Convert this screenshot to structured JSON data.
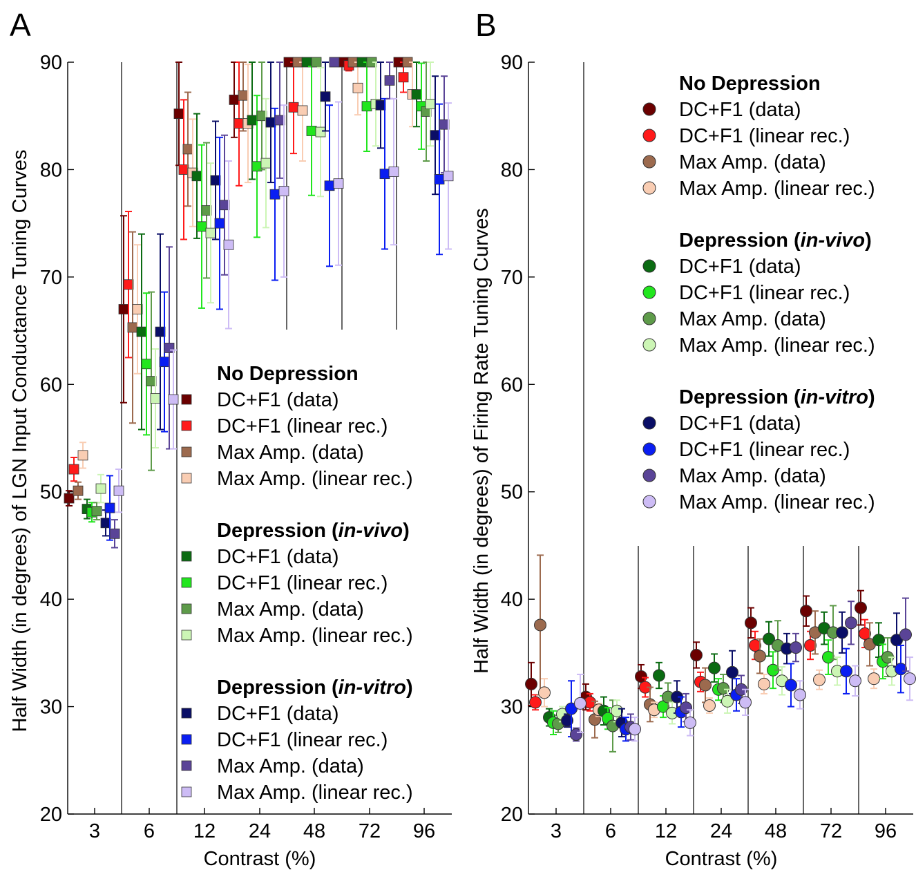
{
  "colors": {
    "no_dep_dc_data": "#6b0000",
    "no_dep_dc_lin": "#ff1a1a",
    "no_dep_max_data": "#9c6a4e",
    "no_dep_max_lin": "#f9cdb3",
    "vivo_dc_data": "#0b6b12",
    "vivo_dc_lin": "#22e61e",
    "vivo_max_data": "#5e9b4a",
    "vivo_max_lin": "#ccf5b5",
    "vitro_dc_data": "#0a0e66",
    "vitro_dc_lin": "#0a1ef2",
    "vitro_max_data": "#5a4497",
    "vitro_max_lin": "#cdbcf5"
  },
  "legend": {
    "groups": [
      {
        "title": "No Depression",
        "entries": [
          "DC+F1 (data)",
          "DC+F1 (linear rec.)",
          "Max Amp. (data)",
          "Max Amp. (linear rec.)"
        ]
      },
      {
        "title_pre": "Depression (",
        "title_ital": "in-vivo",
        "title_post": ")",
        "entries": [
          "DC+F1 (data)",
          "DC+F1 (linear rec.)",
          "Max Amp. (data)",
          "Max Amp. (linear rec.)"
        ]
      },
      {
        "title_pre": "Depression (",
        "title_ital": "in-vitro",
        "title_post": ")",
        "entries": [
          "DC+F1 (data)",
          "DC+F1 (linear rec.)",
          "Max Amp. (data)",
          "Max Amp. (linear rec.)"
        ]
      }
    ]
  },
  "chart_data": [
    {
      "panel": "A",
      "type": "scatter",
      "marker": "square",
      "xlabel": "Contrast (%)",
      "ylabel": "Half Width (in degrees) of LGN Input Conductance Tuning Curves",
      "ylim": [
        20,
        90
      ],
      "yticks": [
        20,
        30,
        40,
        50,
        60,
        70,
        80,
        90
      ],
      "categories": [
        "3",
        "6",
        "12",
        "24",
        "48",
        "72",
        "96"
      ],
      "series": [
        {
          "name": "DC+F1 (data)",
          "group": "No Depression",
          "values": [
            49.4,
            67.0,
            85.2,
            86.5,
            90.0,
            90.0,
            90.0
          ],
          "err": [
            0.7,
            8.7,
            4.8,
            3.5,
            0,
            0,
            0
          ]
        },
        {
          "name": "DC+F1 (linear rec.)",
          "group": "No Depression",
          "values": [
            52.1,
            69.3,
            80.0,
            84.3,
            85.8,
            89.7,
            88.6
          ],
          "err": [
            1.1,
            6.8,
            6.5,
            5.8,
            4.3,
            0.5,
            1.4
          ]
        },
        {
          "name": "Max Amp. (data)",
          "group": "No Depression",
          "values": [
            50.1,
            65.3,
            81.9,
            86.9,
            90.0,
            90.0,
            90.0
          ],
          "err": [
            0.8,
            8.9,
            5.3,
            3.3,
            0,
            0,
            0
          ]
        },
        {
          "name": "Max Amp. (linear rec.)",
          "group": "No Depression",
          "values": [
            53.4,
            67.0,
            79.7,
            84.3,
            85.5,
            87.6,
            87.0
          ],
          "err": [
            1.2,
            6.0,
            5.0,
            5.5,
            4.7,
            2.5,
            3.0
          ]
        },
        {
          "name": "DC+F1 (data)",
          "group": "Depression (in-vivo)",
          "values": [
            48.4,
            64.9,
            79.4,
            84.6,
            90.0,
            90.0,
            87.0
          ],
          "err": [
            0.9,
            9.1,
            5.8,
            5.5,
            0,
            0,
            3.0
          ]
        },
        {
          "name": "DC+F1 (linear rec.)",
          "group": "Depression (in-vivo)",
          "values": [
            48.1,
            61.9,
            74.7,
            80.3,
            83.6,
            85.9,
            85.9
          ],
          "err": [
            0.9,
            6.6,
            7.6,
            6.6,
            6.0,
            4.2,
            4.0
          ]
        },
        {
          "name": "Max Amp. (data)",
          "group": "Depression (in-vivo)",
          "values": [
            48.2,
            60.3,
            76.2,
            85.0,
            90.0,
            90.0,
            85.4
          ],
          "err": [
            0.8,
            8.3,
            6.3,
            5.0,
            0,
            0,
            4.6
          ]
        },
        {
          "name": "Max Amp. (linear rec.)",
          "group": "Depression (in-vivo)",
          "values": [
            50.3,
            58.7,
            74.1,
            80.6,
            83.5,
            86.1,
            86.1
          ],
          "err": [
            1.3,
            4.6,
            6.5,
            6.0,
            6.0,
            3.9,
            3.9
          ]
        },
        {
          "name": "DC+F1 (data)",
          "group": "Depression (in-vitro)",
          "values": [
            47.1,
            64.9,
            79.0,
            84.4,
            86.8,
            86.0,
            83.2
          ],
          "err": [
            1.2,
            9.1,
            5.5,
            5.6,
            3.2,
            4.0,
            5.5
          ]
        },
        {
          "name": "DC+F1 (linear rec.)",
          "group": "Depression (in-vitro)",
          "values": [
            48.5,
            62.1,
            75.0,
            77.7,
            78.5,
            79.6,
            79.1
          ],
          "err": [
            3.0,
            6.5,
            8.0,
            8.0,
            7.5,
            7.0,
            7.0
          ]
        },
        {
          "name": "Max Amp. (data)",
          "group": "Depression (in-vitro)",
          "values": [
            46.1,
            63.4,
            76.7,
            84.6,
            90.0,
            88.3,
            84.2
          ],
          "err": [
            1.3,
            9.4,
            6.5,
            5.4,
            0,
            1.7,
            4.5
          ]
        },
        {
          "name": "Max Amp. (linear rec.)",
          "group": "Depression (in-vitro)",
          "values": [
            50.1,
            58.6,
            73.0,
            78.0,
            78.7,
            79.8,
            79.4
          ],
          "err": [
            2.0,
            4.6,
            7.8,
            8.0,
            7.6,
            6.8,
            6.8
          ]
        }
      ]
    },
    {
      "panel": "B",
      "type": "scatter",
      "marker": "circle",
      "xlabel": "Contrast (%)",
      "ylabel": "Half Width (in degrees) of Firing Rate Tuning Curves",
      "ylim": [
        20,
        90
      ],
      "yticks": [
        20,
        30,
        40,
        50,
        60,
        70,
        80,
        90
      ],
      "categories": [
        "3",
        "6",
        "12",
        "24",
        "48",
        "72",
        "96"
      ],
      "series": [
        {
          "name": "DC+F1 (data)",
          "group": "No Depression",
          "values": [
            32.1,
            30.9,
            32.8,
            34.8,
            37.8,
            38.9,
            39.2
          ],
          "err": [
            2.0,
            1.2,
            1.1,
            1.2,
            1.4,
            1.4,
            1.6
          ]
        },
        {
          "name": "DC+F1 (linear rec.)",
          "group": "No Depression",
          "values": [
            30.4,
            30.4,
            31.8,
            32.3,
            35.7,
            35.7,
            36.8
          ],
          "err": [
            0.7,
            0.8,
            0.9,
            0.9,
            1.3,
            1.3,
            1.3
          ]
        },
        {
          "name": "Max Amp. (data)",
          "group": "No Depression",
          "values": [
            37.6,
            28.8,
            30.2,
            32.0,
            34.7,
            36.9,
            35.8
          ],
          "err": [
            6.5,
            1.7,
            1.6,
            1.6,
            1.6,
            2.0,
            2.0
          ]
        },
        {
          "name": "Max Amp. (linear rec.)",
          "group": "No Depression",
          "values": [
            31.3,
            29.7,
            29.7,
            30.1,
            32.1,
            32.5,
            32.6
          ],
          "err": [
            1.3,
            0.6,
            0.7,
            0.7,
            0.9,
            0.9,
            0.9
          ]
        },
        {
          "name": "DC+F1 (data)",
          "group": "Depression (in-vivo)",
          "values": [
            29.0,
            29.6,
            32.9,
            33.6,
            36.3,
            37.3,
            36.2
          ],
          "err": [
            0.8,
            1.3,
            1.2,
            1.3,
            1.6,
            1.5,
            1.6
          ]
        },
        {
          "name": "DC+F1 (linear rec.)",
          "group": "Depression (in-vivo)",
          "values": [
            28.5,
            28.9,
            30.0,
            31.6,
            33.4,
            34.6,
            34.2
          ],
          "err": [
            1.1,
            1.0,
            1.0,
            1.0,
            1.7,
            1.6,
            1.6
          ]
        },
        {
          "name": "Max Amp. (data)",
          "group": "Depression (in-vivo)",
          "values": [
            28.4,
            28.2,
            30.9,
            31.7,
            35.7,
            36.9,
            34.6
          ],
          "err": [
            0.8,
            2.4,
            1.3,
            1.3,
            2.3,
            2.5,
            1.8
          ]
        },
        {
          "name": "Max Amp. (linear rec.)",
          "group": "Depression (in-vivo)",
          "values": [
            29.3,
            29.6,
            29.4,
            30.5,
            32.4,
            33.3,
            33.3
          ],
          "err": [
            0.7,
            1.0,
            1.0,
            1.1,
            1.3,
            1.3,
            1.3
          ]
        },
        {
          "name": "DC+F1 (data)",
          "group": "Depression (in-vitro)",
          "values": [
            28.7,
            28.5,
            30.9,
            33.2,
            35.4,
            36.9,
            36.2
          ],
          "err": [
            0.6,
            1.3,
            1.5,
            2.0,
            1.4,
            1.9,
            2.5
          ]
        },
        {
          "name": "DC+F1 (linear rec.)",
          "group": "Depression (in-vitro)",
          "values": [
            29.8,
            27.9,
            29.5,
            31.1,
            32.0,
            33.3,
            33.5
          ],
          "err": [
            2.6,
            1.1,
            1.4,
            1.5,
            2.0,
            2.1,
            2.2
          ]
        },
        {
          "name": "Max Amp. (data)",
          "group": "Depression (in-vitro)",
          "values": [
            27.4,
            28.1,
            29.9,
            31.6,
            35.5,
            37.8,
            36.7
          ],
          "err": [
            0.6,
            1.2,
            1.3,
            1.3,
            1.3,
            2.0,
            3.4
          ]
        },
        {
          "name": "Max Amp. (linear rec.)",
          "group": "Depression (in-vitro)",
          "values": [
            30.3,
            27.9,
            28.5,
            30.4,
            31.1,
            32.4,
            32.6
          ],
          "err": [
            2.7,
            1.1,
            1.2,
            1.2,
            1.3,
            1.4,
            2.0
          ]
        }
      ]
    }
  ],
  "panels": {
    "A": {
      "letter": "A",
      "xlabel": "Contrast (%)",
      "ylabel": "Half Width (in degrees) of LGN Input Conductance Tuning Curves"
    },
    "B": {
      "letter": "B",
      "xlabel": "Contrast (%)",
      "ylabel": "Half Width (in degrees) of Firing Rate Tuning Curves"
    }
  }
}
